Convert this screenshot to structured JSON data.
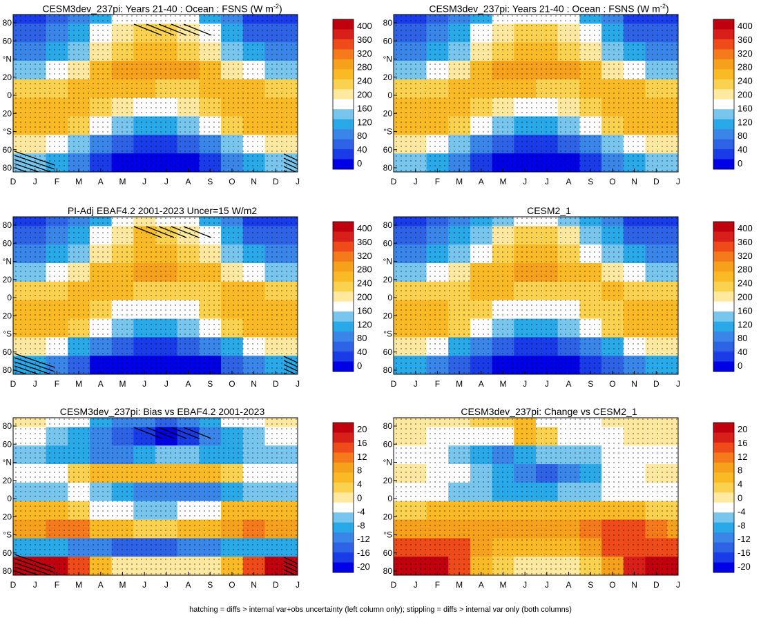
{
  "footer_note": "hatching = diffs > internal var+obs uncertainty (left column only); stippling = diffs > internal var only (both columns)",
  "colorscales": {
    "abs": {
      "levels": [
        "400",
        "360",
        "320",
        "280",
        "240",
        "200",
        "160",
        "120",
        "80",
        "40",
        "0"
      ],
      "colors": [
        "#0000e6",
        "#1a3ce8",
        "#2f63e6",
        "#3a86e8",
        "#2aa9e8",
        "#78c6ee",
        "#ffffff",
        "#ffe9a0",
        "#fbd24f",
        "#f9ba26",
        "#f6a11b",
        "#f57a1c",
        "#ef4a1a",
        "#d91f1a",
        "#c0000e"
      ]
    },
    "diff": {
      "levels": [
        "20",
        "16",
        "12",
        "8",
        "4",
        "0",
        "-4",
        "-8",
        "-12",
        "-16",
        "-20"
      ],
      "colors": [
        "#0000e6",
        "#1a3ce8",
        "#2f63e6",
        "#3a86e8",
        "#2aa9e8",
        "#78c6ee",
        "#ffffff",
        "#ffe9a0",
        "#fbd24f",
        "#f9ba26",
        "#f6a11b",
        "#f57a1c",
        "#ef4a1a",
        "#d91f1a",
        "#c0000e"
      ]
    }
  },
  "chart_data": [
    {
      "id": "p1",
      "type": "heatmap",
      "title": "CESM3dev_237pi: Years 21-40 : Ocean : FSNS (W m",
      "title_sup": "-2",
      "title_tail": ")",
      "scale": "abs",
      "hatching": true,
      "x_ticks": [
        "D",
        "J",
        "F",
        "M",
        "A",
        "M",
        "J",
        "J",
        "A",
        "S",
        "O",
        "N",
        "D",
        "J"
      ],
      "y_ticks": [
        "80",
        "60",
        "°N",
        "20",
        "0",
        "20",
        "°S",
        "60",
        "80"
      ],
      "ylim": [
        -80,
        90
      ],
      "rows": [
        {
          "lat": 90,
          "values": [
            40,
            60,
            90,
            130,
            160,
            180,
            170,
            160,
            130,
            90,
            50,
            40
          ]
        },
        {
          "lat": 70,
          "values": [
            60,
            80,
            110,
            160,
            200,
            230,
            220,
            200,
            160,
            110,
            70,
            60
          ]
        },
        {
          "lat": 50,
          "values": [
            90,
            110,
            150,
            190,
            230,
            250,
            250,
            230,
            190,
            150,
            110,
            90
          ]
        },
        {
          "lat": 30,
          "values": [
            150,
            170,
            210,
            250,
            270,
            280,
            280,
            270,
            250,
            210,
            170,
            150
          ]
        },
        {
          "lat": 10,
          "values": [
            220,
            230,
            240,
            250,
            250,
            240,
            230,
            230,
            240,
            250,
            240,
            230
          ]
        },
        {
          "lat": -10,
          "values": [
            260,
            250,
            240,
            220,
            190,
            170,
            170,
            190,
            220,
            240,
            250,
            260
          ]
        },
        {
          "lat": -30,
          "values": [
            260,
            250,
            220,
            180,
            140,
            120,
            120,
            140,
            180,
            220,
            250,
            260
          ]
        },
        {
          "lat": -50,
          "values": [
            200,
            180,
            140,
            100,
            70,
            50,
            50,
            70,
            100,
            140,
            180,
            200
          ]
        },
        {
          "lat": -70,
          "values": [
            140,
            120,
            80,
            40,
            15,
            5,
            5,
            15,
            40,
            80,
            120,
            140
          ]
        }
      ]
    },
    {
      "id": "p2",
      "type": "heatmap",
      "title": "CESM3dev_237pi: Years 21-40 : Ocean : FSNS (W m",
      "title_sup": "-2",
      "title_tail": ")",
      "scale": "abs",
      "hatching": false,
      "x_ticks": [
        "D",
        "J",
        "F",
        "M",
        "A",
        "M",
        "J",
        "J",
        "A",
        "S",
        "O",
        "N",
        "D",
        "J"
      ],
      "y_ticks": [
        "80",
        "60",
        "°N",
        "20",
        "0",
        "20",
        "°S",
        "60",
        "80"
      ],
      "ylim": [
        -80,
        90
      ],
      "rows": [
        {
          "lat": 90,
          "values": [
            40,
            60,
            90,
            130,
            160,
            180,
            170,
            160,
            130,
            90,
            50,
            40
          ]
        },
        {
          "lat": 70,
          "values": [
            60,
            80,
            110,
            160,
            200,
            230,
            220,
            200,
            160,
            110,
            70,
            60
          ]
        },
        {
          "lat": 50,
          "values": [
            90,
            110,
            150,
            190,
            230,
            250,
            250,
            230,
            190,
            150,
            110,
            90
          ]
        },
        {
          "lat": 30,
          "values": [
            150,
            170,
            210,
            250,
            270,
            280,
            280,
            270,
            250,
            210,
            170,
            150
          ]
        },
        {
          "lat": 10,
          "values": [
            220,
            230,
            240,
            250,
            250,
            240,
            230,
            230,
            240,
            250,
            240,
            230
          ]
        },
        {
          "lat": -10,
          "values": [
            260,
            250,
            240,
            220,
            190,
            170,
            170,
            190,
            220,
            240,
            250,
            260
          ]
        },
        {
          "lat": -30,
          "values": [
            260,
            250,
            220,
            180,
            140,
            120,
            120,
            140,
            180,
            220,
            250,
            260
          ]
        },
        {
          "lat": -50,
          "values": [
            200,
            180,
            140,
            100,
            70,
            50,
            50,
            70,
            100,
            140,
            180,
            200
          ]
        },
        {
          "lat": -70,
          "values": [
            140,
            120,
            80,
            40,
            15,
            5,
            5,
            15,
            40,
            80,
            120,
            140
          ]
        }
      ]
    },
    {
      "id": "p3",
      "type": "heatmap",
      "title": "PI-Adj EBAF4.2 2001-2023 Uncer=15 W/m2",
      "title_sup": "",
      "title_tail": "",
      "scale": "abs",
      "hatching": true,
      "x_ticks": [
        "D",
        "J",
        "F",
        "M",
        "A",
        "M",
        "J",
        "J",
        "A",
        "S",
        "O",
        "N",
        "D",
        "J"
      ],
      "y_ticks": [
        "80",
        "60",
        "°N",
        "20",
        "0",
        "20",
        "°S",
        "60",
        "80"
      ],
      "ylim": [
        -80,
        90
      ],
      "rows": [
        {
          "lat": 90,
          "values": [
            40,
            60,
            90,
            130,
            170,
            190,
            180,
            170,
            130,
            90,
            50,
            40
          ]
        },
        {
          "lat": 70,
          "values": [
            60,
            80,
            110,
            160,
            210,
            240,
            230,
            210,
            160,
            110,
            70,
            60
          ]
        },
        {
          "lat": 50,
          "values": [
            90,
            110,
            150,
            190,
            230,
            250,
            250,
            230,
            190,
            150,
            110,
            90
          ]
        },
        {
          "lat": 30,
          "values": [
            150,
            170,
            210,
            250,
            265,
            275,
            275,
            265,
            250,
            210,
            170,
            150
          ]
        },
        {
          "lat": 10,
          "values": [
            220,
            230,
            240,
            245,
            245,
            235,
            225,
            225,
            235,
            245,
            240,
            230
          ]
        },
        {
          "lat": -10,
          "values": [
            255,
            250,
            240,
            215,
            185,
            165,
            165,
            185,
            215,
            240,
            250,
            255
          ]
        },
        {
          "lat": -30,
          "values": [
            255,
            245,
            215,
            175,
            135,
            115,
            115,
            135,
            175,
            215,
            245,
            255
          ]
        },
        {
          "lat": -50,
          "values": [
            190,
            170,
            130,
            90,
            60,
            45,
            45,
            60,
            90,
            130,
            170,
            190
          ]
        },
        {
          "lat": -70,
          "values": [
            120,
            100,
            60,
            25,
            8,
            3,
            3,
            8,
            25,
            60,
            100,
            120
          ]
        }
      ]
    },
    {
      "id": "p4",
      "type": "heatmap",
      "title": "CESM2_1",
      "title_sup": "",
      "title_tail": "",
      "scale": "abs",
      "hatching": false,
      "x_ticks": [
        "D",
        "J",
        "F",
        "M",
        "A",
        "M",
        "J",
        "J",
        "A",
        "S",
        "O",
        "N",
        "D",
        "J"
      ],
      "y_ticks": [
        "80",
        "60",
        "°N",
        "20",
        "0",
        "20",
        "°S",
        "60",
        "80"
      ],
      "ylim": [
        -80,
        90
      ],
      "rows": [
        {
          "lat": 90,
          "values": [
            40,
            55,
            85,
            125,
            155,
            175,
            165,
            155,
            125,
            85,
            50,
            40
          ]
        },
        {
          "lat": 70,
          "values": [
            60,
            80,
            110,
            155,
            195,
            225,
            215,
            195,
            155,
            110,
            70,
            60
          ]
        },
        {
          "lat": 50,
          "values": [
            90,
            110,
            145,
            185,
            225,
            245,
            245,
            225,
            185,
            145,
            110,
            90
          ]
        },
        {
          "lat": 30,
          "values": [
            150,
            170,
            205,
            245,
            265,
            275,
            275,
            265,
            245,
            205,
            170,
            150
          ]
        },
        {
          "lat": 10,
          "values": [
            215,
            225,
            235,
            245,
            245,
            235,
            225,
            225,
            235,
            245,
            235,
            225
          ]
        },
        {
          "lat": -10,
          "values": [
            255,
            245,
            235,
            215,
            185,
            165,
            165,
            185,
            215,
            235,
            245,
            255
          ]
        },
        {
          "lat": -30,
          "values": [
            255,
            245,
            215,
            175,
            135,
            115,
            115,
            135,
            175,
            215,
            245,
            255
          ]
        },
        {
          "lat": -50,
          "values": [
            190,
            170,
            130,
            95,
            65,
            45,
            45,
            65,
            95,
            130,
            170,
            190
          ]
        },
        {
          "lat": -70,
          "values": [
            125,
            105,
            65,
            30,
            10,
            4,
            4,
            10,
            30,
            65,
            105,
            125
          ]
        }
      ]
    },
    {
      "id": "p5",
      "type": "heatmap",
      "title": "CESM3dev_237pi: Bias vs EBAF4.2 2001-2023",
      "title_sup": "",
      "title_tail": "",
      "scale": "diff",
      "hatching": true,
      "x_ticks": [
        "D",
        "J",
        "F",
        "M",
        "A",
        "M",
        "J",
        "J",
        "A",
        "S",
        "O",
        "N",
        "D",
        "J"
      ],
      "y_ticks": [
        "80",
        "60",
        "°N",
        "20",
        "0",
        "20",
        "°S",
        "60",
        "80"
      ],
      "ylim": [
        -80,
        90
      ],
      "rows": [
        {
          "lat": 90,
          "values": [
            0,
            -2,
            -4,
            -8,
            -10,
            -12,
            -14,
            -12,
            -8,
            -4,
            -2,
            0
          ]
        },
        {
          "lat": 70,
          "values": [
            -4,
            -6,
            -8,
            -10,
            -14,
            -16,
            -18,
            -16,
            -12,
            -8,
            -6,
            -4
          ]
        },
        {
          "lat": 50,
          "values": [
            -6,
            -8,
            -8,
            -10,
            -10,
            -8,
            -6,
            -6,
            -8,
            -8,
            -6,
            -6
          ]
        },
        {
          "lat": 30,
          "values": [
            -2,
            -2,
            2,
            4,
            4,
            6,
            6,
            6,
            4,
            2,
            -2,
            -2
          ]
        },
        {
          "lat": 10,
          "values": [
            -6,
            -6,
            -4,
            -6,
            -8,
            -10,
            -12,
            -12,
            -10,
            -8,
            -6,
            -6
          ]
        },
        {
          "lat": -10,
          "values": [
            6,
            6,
            2,
            -2,
            -4,
            -6,
            -6,
            -4,
            -2,
            4,
            6,
            6
          ]
        },
        {
          "lat": -30,
          "values": [
            8,
            10,
            10,
            6,
            4,
            2,
            2,
            4,
            6,
            8,
            10,
            8
          ]
        },
        {
          "lat": -50,
          "values": [
            -8,
            -8,
            -10,
            -12,
            -14,
            -14,
            -14,
            -12,
            -10,
            -8,
            -8,
            -8
          ]
        },
        {
          "lat": -70,
          "values": [
            18,
            20,
            14,
            4,
            0,
            0,
            0,
            0,
            0,
            4,
            14,
            18
          ]
        }
      ]
    },
    {
      "id": "p6",
      "type": "heatmap",
      "title": "CESM3dev_237pi: Change vs CESM2_1",
      "title_sup": "",
      "title_tail": "",
      "scale": "diff",
      "hatching": false,
      "x_ticks": [
        "D",
        "J",
        "F",
        "M",
        "A",
        "M",
        "J",
        "J",
        "A",
        "S",
        "O",
        "N",
        "D",
        "J"
      ],
      "y_ticks": [
        "80",
        "60",
        "°N",
        "20",
        "0",
        "20",
        "°S",
        "60",
        "80"
      ],
      "ylim": [
        -80,
        90
      ],
      "rows": [
        {
          "lat": 90,
          "values": [
            0,
            0,
            0,
            2,
            2,
            4,
            -2,
            -4,
            -2,
            0,
            0,
            0
          ]
        },
        {
          "lat": 70,
          "values": [
            0,
            -2,
            -4,
            -4,
            -2,
            4,
            2,
            -2,
            -4,
            -2,
            0,
            0
          ]
        },
        {
          "lat": 50,
          "values": [
            -2,
            -4,
            -6,
            -8,
            -10,
            -8,
            -6,
            -6,
            -6,
            -4,
            -2,
            -2
          ]
        },
        {
          "lat": 30,
          "values": [
            0,
            -2,
            -4,
            -6,
            -8,
            -10,
            -14,
            -12,
            -8,
            -4,
            -2,
            0
          ]
        },
        {
          "lat": 10,
          "values": [
            -4,
            -4,
            -6,
            -6,
            -8,
            -8,
            -8,
            -6,
            -6,
            -4,
            -4,
            -4
          ]
        },
        {
          "lat": -10,
          "values": [
            2,
            4,
            4,
            6,
            6,
            6,
            6,
            6,
            6,
            4,
            4,
            2
          ]
        },
        {
          "lat": -30,
          "values": [
            8,
            8,
            8,
            8,
            8,
            8,
            8,
            8,
            10,
            12,
            14,
            10
          ]
        },
        {
          "lat": -50,
          "values": [
            14,
            14,
            12,
            8,
            6,
            4,
            4,
            6,
            8,
            12,
            14,
            14
          ]
        },
        {
          "lat": -70,
          "values": [
            20,
            18,
            12,
            6,
            2,
            0,
            0,
            0,
            2,
            8,
            16,
            20
          ]
        }
      ]
    }
  ]
}
